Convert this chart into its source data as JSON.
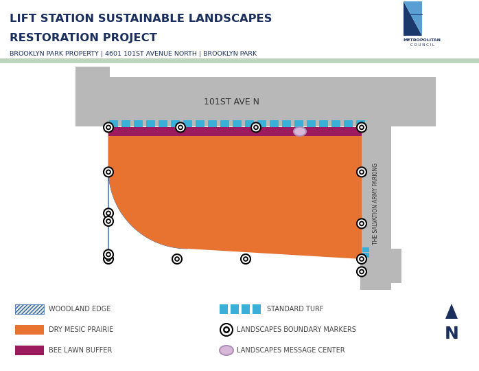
{
  "title_line1": "LIFT STATION SUSTAINABLE LANDSCAPES",
  "title_line2": "RESTORATION PROJECT",
  "subtitle": "BROOKLYN PARK PROPERTY | 4601 101ST AVENUE NORTH | BROOKLYN PARK",
  "title_color": "#1b2f5e",
  "subtitle_color": "#1b2f5e",
  "bg_map": "#bdd5bc",
  "road_color": "#b8b8b8",
  "standard_turf_color": "#3ab0d8",
  "bee_lawn_color": "#9c1a5e",
  "woodland_fill": "#e8ead8",
  "woodland_stripe": "#2a60b0",
  "prairie_color": "#e87230",
  "marker_outer": "#ffffff",
  "marker_ring": "#000000",
  "marker_dot": "#000000",
  "message_center_color": "#d8b8d8",
  "message_center_edge": "#b090b8",
  "salvation_army_text": "THE SALVATION ARMY PARKING",
  "road_label": "101ST AVE N",
  "legend_woodland": "WOODLAND EDGE",
  "legend_prairie": "DRY MESIC PRAIRIE",
  "legend_bee": "BEE LAWN BUFFER",
  "legend_turf": "STANDARD TURF",
  "legend_marker": "LANDSCAPES BOUNDARY MARKERS",
  "legend_message": "LANDSCAPES MESSAGE CENTER",
  "north_arrow_color": "#1b2f5e",
  "header_line_color": "#bdd5bc"
}
